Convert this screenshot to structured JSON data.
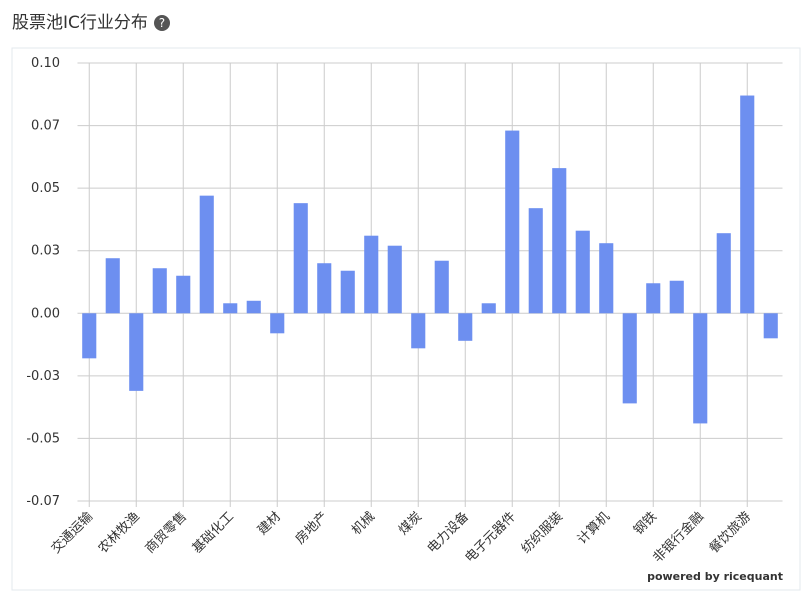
{
  "chart_data": {
    "type": "bar",
    "title": "股票池IC行业分布",
    "credit": "powered by ricequant",
    "categories": [
      "交通运输",
      null,
      "农林牧渔",
      null,
      "商贸零售",
      null,
      "基础化工",
      null,
      "建材",
      null,
      "房地产",
      null,
      "机械",
      null,
      "煤炭",
      null,
      "电力设备",
      null,
      "电子元器件",
      null,
      "纺织服装",
      null,
      "计算机",
      null,
      "钢铁",
      null,
      "非银行金融",
      null,
      "餐饮旅游",
      null
    ],
    "values": [
      -0.018,
      0.022,
      -0.031,
      0.018,
      0.015,
      0.047,
      0.004,
      0.005,
      -0.008,
      0.044,
      0.02,
      0.017,
      0.031,
      0.027,
      -0.014,
      0.021,
      -0.011,
      0.004,
      0.073,
      0.042,
      0.058,
      0.033,
      0.028,
      -0.036,
      0.012,
      0.013,
      -0.044,
      0.032,
      0.087,
      -0.01
    ],
    "color": "#6d8ff0",
    "ylim": [
      -0.075,
      0.1
    ],
    "yticks": [
      {
        "value": 0.1,
        "label": "0.10"
      },
      {
        "value": 0.075,
        "label": "0.07"
      },
      0.05,
      {
        "value": 0.025,
        "label": "0.03"
      },
      {
        "value": 0,
        "label": "0.00"
      },
      {
        "value": -0.025,
        "label": "-0.03"
      },
      -0.05,
      {
        "value": -0.075,
        "label": "-0.07"
      }
    ],
    "grid": true
  }
}
